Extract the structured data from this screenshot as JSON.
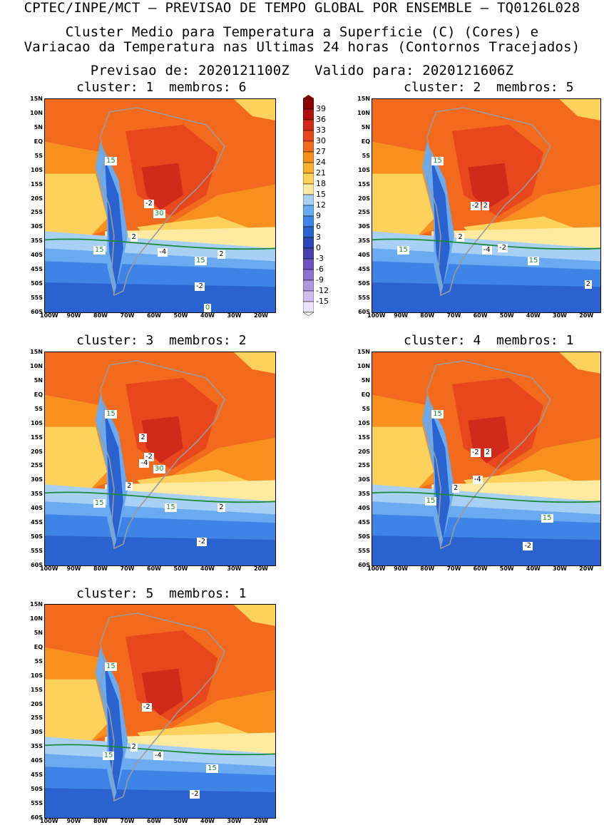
{
  "header": {
    "line1": "CPTEC/INPE/MCT – PREVISAO DE TEMPO GLOBAL POR ENSEMBLE – TQ0126L028",
    "line2": "Cluster Medio para Temperatura a Superficie (C) (Cores) e",
    "line3": "Variacao da Temperatura nas Ultimas 24 horas (Contornos Tracejados)",
    "line4": "Previsao de: 2020121100Z   Valido para: 2020121606Z"
  },
  "panels": [
    {
      "title": "cluster: 1  membros: 6",
      "labels": [
        "15",
        "-2",
        "30",
        "2",
        "15",
        "-4",
        "15",
        "2",
        "-2",
        "0"
      ]
    },
    {
      "title": "cluster: 2  membros: 5",
      "labels": [
        "15",
        "-2",
        "2",
        "2",
        "15",
        "-4",
        "-2",
        "15",
        "2"
      ]
    },
    {
      "title": "cluster: 3  membros: 2",
      "labels": [
        "15",
        "2",
        "-2",
        "-4",
        "30",
        "2",
        "15",
        "15",
        "2",
        "-2"
      ]
    },
    {
      "title": "cluster: 4  membros: 1",
      "labels": [
        "15",
        "-2",
        "2",
        "-4",
        "2",
        "15",
        "15",
        "-2"
      ]
    },
    {
      "title": "cluster: 5  membros: 1",
      "labels": [
        "15",
        "-2",
        "2",
        "15",
        "-4",
        "15",
        "-2"
      ]
    }
  ],
  "lat_ticks": [
    "15N",
    "10N",
    "5N",
    "EQ",
    "5S",
    "10S",
    "15S",
    "20S",
    "25S",
    "30S",
    "35S",
    "40S",
    "45S",
    "50S",
    "55S",
    "60S"
  ],
  "lon_ticks": [
    "100W",
    "90W",
    "80W",
    "70W",
    "60W",
    "50W",
    "40W",
    "30W",
    "20W"
  ],
  "colorbar": {
    "labels": [
      "39",
      "36",
      "33",
      "30",
      "27",
      "24",
      "21",
      "18",
      "15",
      "12",
      "9",
      "6",
      "3",
      "0",
      "-3",
      "-6",
      "-9",
      "-12",
      "-15"
    ],
    "colors": [
      "#8b0000",
      "#b01010",
      "#d22a1a",
      "#e8471e",
      "#f26a1e",
      "#f7901f",
      "#f9b030",
      "#fcd25c",
      "#fdeaa0",
      "#a8d0f5",
      "#6aaaf0",
      "#3e84e6",
      "#2a62d0",
      "#2c48b8",
      "#4a3fb0",
      "#6a54c2",
      "#8a74d2",
      "#ad98e2",
      "#cdbff0",
      "#ebe4fa"
    ]
  }
}
